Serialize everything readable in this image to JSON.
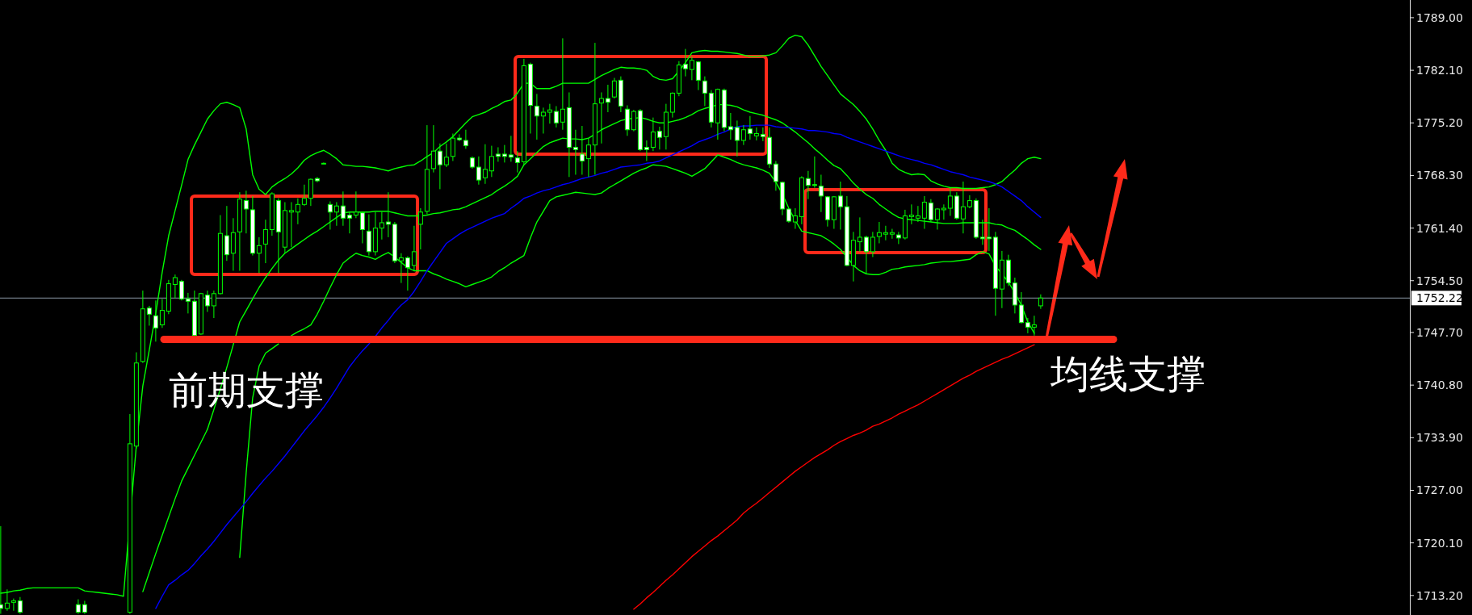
{
  "chart_data": {
    "type": "candlestick",
    "color": "#00ff00",
    "categories": [
      null,
      null,
      null,
      null,
      null,
      null,
      null,
      null,
      null,
      null,
      null,
      null,
      null,
      null,
      null,
      null,
      null,
      null,
      null,
      null,
      null,
      null,
      null,
      null,
      null,
      null,
      null,
      null,
      null,
      null,
      null,
      null,
      null,
      null,
      null,
      null,
      null,
      null,
      null,
      null,
      null,
      null,
      null,
      null,
      null,
      null,
      null,
      null,
      null,
      null,
      null,
      null,
      null,
      null,
      null,
      null,
      null,
      null,
      null,
      null,
      null,
      null,
      null,
      null,
      null,
      null,
      null,
      null,
      null,
      null,
      null,
      null,
      null,
      null,
      null,
      null,
      null,
      null,
      null,
      null,
      null,
      null,
      null,
      null,
      null,
      null,
      null,
      null,
      null,
      null,
      null,
      null,
      null,
      null,
      null,
      null,
      null,
      null,
      null,
      null,
      null,
      null,
      null,
      null,
      null,
      null,
      null,
      null,
      null,
      null,
      null,
      null,
      null,
      null,
      null,
      null,
      null,
      null,
      null,
      null,
      null,
      null,
      null,
      null,
      null,
      null,
      null,
      null,
      null,
      null,
      null,
      null,
      null,
      null,
      null,
      null,
      null,
      null,
      null,
      null,
      null,
      null,
      null,
      null,
      null,
      null,
      null,
      null,
      null,
      null,
      null,
      null,
      null,
      null,
      null,
      null,
      null,
      null,
      null,
      null,
      null,
      null
    ],
    "ohlc": [
      [
        1712.0,
        1722.3,
        1710.8,
        1711.5
      ],
      [
        1711.5,
        1714.0,
        1711.2,
        1712.2
      ],
      [
        1712.3,
        1712.8,
        1711.2,
        1712.5
      ],
      [
        1712.5,
        1713.0,
        1710.8,
        1711.0
      ],
      null,
      null,
      null,
      null,
      null,
      null,
      null,
      null,
      [
        1712.0,
        1712.7,
        1710.8,
        1711.0
      ],
      [
        1712.0,
        1712.5,
        1710.8,
        1711.0
      ],
      null,
      null,
      null,
      null,
      null,
      null,
      [
        1711.0,
        1737.0,
        1710.8,
        1733.1
      ],
      [
        1732.8,
        1745.1,
        1732.5,
        1743.7
      ],
      [
        1743.9,
        1753.2,
        1743.7,
        1750.8
      ],
      [
        1750.9,
        1751.2,
        1748.6,
        1750.1
      ],
      [
        1749.9,
        1751.9,
        1746.5,
        1748.3
      ],
      [
        1748.7,
        1752.1,
        1748.3,
        1750.6
      ],
      [
        1750.5,
        1754.6,
        1750.1,
        1754.1
      ],
      [
        1754.0,
        1755.3,
        1752.2,
        1754.9
      ],
      [
        1754.4,
        1754.6,
        1751.9,
        1752.1
      ],
      [
        1752.1,
        1752.9,
        1750.2,
        1751.8
      ],
      [
        1751.8,
        1753.2,
        1747.1,
        1747.3
      ],
      [
        1747.5,
        1752.9,
        1747.4,
        1752.8
      ],
      [
        1752.6,
        1753.2,
        1750.4,
        1751.2
      ],
      [
        1751.2,
        1753.2,
        1749.6,
        1752.8
      ],
      [
        1752.8,
        1763.1,
        1752.7,
        1760.7
      ],
      [
        1760.4,
        1764.3,
        1757.1,
        1757.9
      ],
      [
        1758.1,
        1762.7,
        1755.8,
        1760.8
      ],
      [
        1760.9,
        1766.1,
        1755.8,
        1765.2
      ],
      [
        1765.0,
        1766.3,
        1760.7,
        1763.9
      ],
      [
        1763.8,
        1765.6,
        1757.8,
        1758.1
      ],
      [
        1758.1,
        1760.2,
        1755.5,
        1759.1
      ],
      [
        1759.3,
        1762.5,
        1756.8,
        1761.2
      ],
      [
        1761.2,
        1766.1,
        1760.4,
        1765.9
      ],
      [
        1765.0,
        1765.3,
        1755.5,
        1760.9
      ],
      [
        1758.9,
        1764.8,
        1758.1,
        1763.7
      ],
      [
        1763.5,
        1764.8,
        1758.9,
        1763.7
      ],
      [
        1763.5,
        1765.3,
        1761.9,
        1764.5
      ],
      [
        1764.5,
        1767.1,
        1764.3,
        1765.3
      ],
      [
        1765.3,
        1767.9,
        1764.3,
        1767.8
      ],
      [
        1767.9,
        1768.1,
        1767.4,
        1767.6
      ],
      [
        1769.9,
        1770.0,
        1769.8,
        1769.9
      ],
      [
        1764.5,
        1764.9,
        1761.2,
        1763.5
      ],
      [
        1763.5,
        1764.8,
        1761.7,
        1764.3
      ],
      [
        1764.3,
        1766.2,
        1761.7,
        1762.7
      ],
      [
        1763.1,
        1763.5,
        1760.7,
        1762.7
      ],
      [
        1763.1,
        1766.2,
        1762.7,
        1763.5
      ],
      [
        1763.4,
        1763.5,
        1759.4,
        1761.2
      ],
      [
        1761.0,
        1763.2,
        1757.8,
        1758.3
      ],
      [
        1758.3,
        1763.5,
        1757.8,
        1761.4
      ],
      [
        1761.4,
        1763.5,
        1759.9,
        1762.1
      ],
      [
        1762.2,
        1766.1,
        1760.2,
        1761.9
      ],
      [
        1761.9,
        1762.2,
        1756.8,
        1757.1
      ],
      [
        1757.1,
        1758.1,
        1754.2,
        1757.5
      ],
      [
        1757.5,
        1757.7,
        1753.2,
        1756.2
      ],
      [
        1756.5,
        1761.7,
        1755.8,
        1758.3
      ],
      [
        1761.9,
        1764.0,
        1758.6,
        1763.5
      ],
      [
        1763.6,
        1774.9,
        1763.2,
        1769.1
      ],
      [
        1769.2,
        1774.9,
        1768.7,
        1771.5
      ],
      [
        1771.5,
        1772.5,
        1766.5,
        1769.7
      ],
      [
        1769.7,
        1772.5,
        1769.4,
        1770.7
      ],
      [
        1770.8,
        1773.8,
        1770.2,
        1773.2
      ],
      [
        1773.2,
        1773.7,
        1772.8,
        1773.0
      ],
      [
        1772.9,
        1774.3,
        1771.8,
        1772.2
      ],
      [
        1770.6,
        1770.8,
        1769.2,
        1769.4
      ],
      [
        1769.4,
        1770.8,
        1767.1,
        1767.7
      ],
      [
        1768.0,
        1772.4,
        1767.2,
        1769.1
      ],
      [
        1768.9,
        1772.2,
        1768.1,
        1770.8
      ],
      [
        1771.1,
        1772.0,
        1770.1,
        1770.8
      ],
      [
        1771.1,
        1772.3,
        1770.0,
        1770.8
      ],
      [
        1771.0,
        1773.5,
        1770.1,
        1770.7
      ],
      [
        1770.6,
        1771.5,
        1768.7,
        1770.0
      ],
      [
        1770.1,
        1783.6,
        1769.7,
        1782.7
      ],
      [
        1782.9,
        1783.1,
        1773.8,
        1777.5
      ],
      [
        1777.4,
        1779.0,
        1773.0,
        1776.1
      ],
      [
        1776.1,
        1777.2,
        1773.8,
        1776.6
      ],
      [
        1776.6,
        1777.7,
        1775.1,
        1776.9
      ],
      [
        1776.7,
        1777.4,
        1774.6,
        1775.2
      ],
      [
        1775.3,
        1786.3,
        1774.3,
        1777.0
      ],
      [
        1777.2,
        1779.2,
        1768.1,
        1772.0
      ],
      [
        1772.0,
        1774.3,
        1768.4,
        1771.7
      ],
      [
        1771.1,
        1774.8,
        1768.4,
        1770.2
      ],
      [
        1770.5,
        1773.2,
        1768.1,
        1772.3
      ],
      [
        1772.3,
        1785.7,
        1768.4,
        1777.7
      ],
      [
        1777.8,
        1779.2,
        1772.5,
        1778.4
      ],
      [
        1778.4,
        1780.2,
        1776.6,
        1777.9
      ],
      [
        1778.6,
        1781.1,
        1778.4,
        1780.7
      ],
      [
        1780.8,
        1781.3,
        1776.6,
        1777.4
      ],
      [
        1777.0,
        1777.5,
        1773.5,
        1774.3
      ],
      [
        1774.3,
        1776.9,
        1774.1,
        1776.7
      ],
      [
        1776.8,
        1777.0,
        1771.5,
        1771.7
      ],
      [
        1772.0,
        1772.9,
        1770.2,
        1771.7
      ],
      [
        1772.0,
        1775.9,
        1771.5,
        1774.0
      ],
      [
        1774.1,
        1774.7,
        1771.7,
        1773.3
      ],
      [
        1773.4,
        1777.7,
        1771.7,
        1776.6
      ],
      [
        1776.6,
        1779.2,
        1775.9,
        1779.1
      ],
      [
        1779.1,
        1783.3,
        1778.7,
        1782.8
      ],
      [
        1782.9,
        1784.9,
        1781.3,
        1782.3
      ],
      [
        1782.2,
        1783.9,
        1780.8,
        1783.4
      ],
      [
        1783.2,
        1783.3,
        1779.5,
        1780.8
      ],
      [
        1780.7,
        1781.3,
        1777.4,
        1779.1
      ],
      [
        1779.1,
        1779.5,
        1774.6,
        1775.3
      ],
      [
        1775.2,
        1779.7,
        1773.0,
        1779.6
      ],
      [
        1779.5,
        1779.7,
        1774.1,
        1774.6
      ],
      [
        1774.7,
        1776.5,
        1773.0,
        1774.3
      ],
      [
        1774.6,
        1775.5,
        1770.8,
        1772.9
      ],
      [
        1772.9,
        1774.9,
        1772.3,
        1774.3
      ],
      [
        1774.4,
        1776.1,
        1773.0,
        1773.8
      ],
      [
        1773.5,
        1774.6,
        1772.9,
        1773.8
      ],
      [
        1773.7,
        1774.6,
        1772.8,
        1773.4
      ],
      [
        1773.3,
        1774.6,
        1769.3,
        1769.8
      ],
      [
        1769.8,
        1770.2,
        1766.3,
        1767.5
      ],
      [
        1767.4,
        1767.5,
        1763.1,
        1763.9
      ],
      [
        1763.9,
        1764.0,
        1762.1,
        1762.3
      ],
      [
        1762.2,
        1764.0,
        1761.3,
        1763.0
      ],
      [
        1762.9,
        1768.2,
        1761.9,
        1768.0
      ],
      [
        1767.9,
        1768.9,
        1765.2,
        1767.0
      ],
      [
        1767.1,
        1770.8,
        1766.7,
        1767.0
      ],
      [
        1766.9,
        1768.4,
        1763.5,
        1765.6
      ],
      [
        1765.5,
        1765.6,
        1761.6,
        1762.5
      ],
      [
        1762.5,
        1765.6,
        1761.3,
        1765.5
      ],
      [
        1765.6,
        1767.5,
        1761.2,
        1764.2
      ],
      [
        1764.2,
        1765.6,
        1756.4,
        1756.5
      ],
      [
        1756.5,
        1760.9,
        1754.4,
        1759.8
      ],
      [
        1759.6,
        1762.8,
        1758.3,
        1760.2
      ],
      [
        1760.2,
        1760.4,
        1755.4,
        1758.3
      ],
      [
        1758.3,
        1760.9,
        1757.6,
        1760.2
      ],
      [
        1760.3,
        1762.2,
        1759.4,
        1760.8
      ],
      [
        1760.6,
        1761.7,
        1759.8,
        1760.8
      ],
      [
        1760.6,
        1761.3,
        1760.0,
        1760.8
      ],
      [
        1760.5,
        1760.9,
        1759.3,
        1760.1
      ],
      [
        1760.1,
        1763.8,
        1759.9,
        1763.0
      ],
      [
        1762.9,
        1764.5,
        1761.9,
        1763.1
      ],
      [
        1762.7,
        1764.3,
        1762.2,
        1763.0
      ],
      [
        1762.7,
        1765.6,
        1761.3,
        1764.8
      ],
      [
        1764.7,
        1765.2,
        1762.2,
        1762.5
      ],
      [
        1762.5,
        1764.0,
        1761.2,
        1763.9
      ],
      [
        1763.8,
        1764.5,
        1762.5,
        1764.0
      ],
      [
        1764.0,
        1766.7,
        1763.0,
        1765.6
      ],
      [
        1765.6,
        1766.1,
        1762.5,
        1762.7
      ],
      [
        1762.6,
        1767.5,
        1760.7,
        1764.2
      ],
      [
        1764.2,
        1765.7,
        1764.0,
        1765.0
      ],
      [
        1765.0,
        1765.3,
        1760.0,
        1760.2
      ],
      [
        1760.2,
        1762.5,
        1759.2,
        1760.0
      ],
      [
        1760.2,
        1764.0,
        1758.4,
        1760.0
      ],
      [
        1760.2,
        1760.9,
        1749.9,
        1753.5
      ],
      [
        1753.4,
        1758.4,
        1750.9,
        1757.2
      ],
      [
        1757.2,
        1757.9,
        1753.8,
        1754.2
      ],
      [
        1754.2,
        1754.9,
        1750.2,
        1751.3
      ],
      [
        1751.3,
        1753.0,
        1748.9,
        1749.0
      ],
      [
        1749.0,
        1749.6,
        1747.6,
        1748.4
      ],
      [
        1748.4,
        1749.9,
        1747.3,
        1748.7
      ],
      [
        1751.2,
        1752.7,
        1750.8,
        1752.22
      ]
    ],
    "ylim": [
      1710.64,
      1791.32
    ],
    "yticks": [
      {
        "value": 1713.2,
        "label": "1713.20"
      },
      {
        "value": 1720.1,
        "label": "1720.10"
      },
      {
        "value": 1727,
        "label": "1727.00"
      },
      {
        "value": 1733.9,
        "label": "1733.90"
      },
      {
        "value": 1740.8,
        "label": "1740.80"
      },
      {
        "value": 1747.7,
        "label": "1747.70"
      },
      {
        "value": 1754.5,
        "label": "1754.50"
      },
      {
        "value": 1761.4,
        "label": "1761.40"
      },
      {
        "value": 1768.3,
        "label": "1768.30"
      },
      {
        "value": 1775.2,
        "label": "1775.20"
      },
      {
        "value": 1782.1,
        "label": "1782.10"
      },
      {
        "value": 1789,
        "label": "1789.00"
      }
    ],
    "tick_labels": "y",
    "series": [
      {
        "type": "line",
        "color": "#00ff00",
        "values": [
          1713.5,
          1713.6,
          1713.8,
          1713.9,
          1714.1,
          1714.2,
          1714.2,
          1714.2,
          1714.2,
          1714.2,
          1714.2,
          1714.2,
          1714.2,
          1713.8,
          1713.7,
          1713.6,
          1713.5,
          1713.4,
          1713.3,
          1713.1,
          1723.1,
          1732.9,
          1740.7,
          1745.4,
          1750.2,
          1755.6,
          1760.4,
          1763.7,
          1767.0,
          1770.4,
          1772.3,
          1774.0,
          1775.7,
          1776.8,
          1777.7,
          1777.9,
          1777.6,
          1777.2,
          1774.4,
          1768.4,
          1766.5,
          1765.8,
          1766.8,
          1767.4,
          1767.9,
          1768.5,
          1769.3,
          1770.3,
          1770.9,
          1771.3,
          1771.6,
          1771.1,
          1770.5,
          1769.7,
          1769.6,
          1769.5,
          1769.5,
          1769.4,
          1769.3,
          1769.1,
          1768.9,
          1769.2,
          1769.4,
          1769.6,
          1769.7,
          1770.2,
          1770.8,
          1771.3,
          1772.1,
          1772.7,
          1773.4,
          1774.3,
          1775.2,
          1776.0,
          1776.3,
          1776.6,
          1777.1,
          1777.5,
          1778.0,
          1778.2,
          1779.1,
          1780.4,
          1780.4,
          1779.7,
          1779.7,
          1779.7,
          1780.0,
          1780.4,
          1780.4,
          1780.4,
          1780.4,
          1780.4,
          1780.9,
          1781.4,
          1781.8,
          1782.2,
          1782.5,
          1782.4,
          1782.4,
          1782.3,
          1782.1,
          1781.3,
          1780.9,
          1780.8,
          1781.0,
          1782.0,
          1783.1,
          1784.4,
          1784.6,
          1784.7,
          1784.6,
          1784.6,
          1784.5,
          1784.4,
          1784.3,
          1784.1,
          1783.9,
          1783.9,
          1784.0,
          1784.1,
          1784.4,
          1785.3,
          1786.3,
          1786.7,
          1786.5,
          1785.4,
          1784.0,
          1782.6,
          1781.4,
          1780.2,
          1779.0,
          1778.3,
          1777.6,
          1776.7,
          1775.7,
          1774.4,
          1772.9,
          1771.6,
          1769.9,
          1769.1,
          1768.7,
          1768.4,
          1768.5,
          1768.4,
          1767.6,
          1767.2,
          1766.9,
          1766.7,
          1766.7,
          1766.6,
          1766.6,
          1766.6,
          1766.7,
          1766.8,
          1767.1,
          1767.5,
          1768.3,
          1769.0,
          1769.9,
          1770.5,
          1770.7,
          1770.5
        ]
      },
      {
        "type": "line",
        "color": "#00ff00",
        "values": [
          null,
          null,
          null,
          null,
          null,
          null,
          null,
          null,
          null,
          null,
          null,
          null,
          null,
          null,
          null,
          null,
          null,
          null,
          null,
          null,
          null,
          null,
          1713.7,
          1716.2,
          1718.7,
          1721.1,
          1723.5,
          1725.9,
          1728.2,
          1729.9,
          1731.6,
          1733.3,
          1735.0,
          1737.6,
          1740.3,
          1743.1,
          1746.1,
          1749.1,
          1750.6,
          1752.1,
          1753.6,
          1754.9,
          1756.1,
          1757.2,
          1758.1,
          1758.7,
          1759.3,
          1759.9,
          1760.5,
          1761.0,
          1761.6,
          1762.2,
          1762.8,
          1763.4,
          1763.5,
          1763.5,
          1763.5,
          1763.5,
          1763.6,
          1763.6,
          1763.6,
          1763.4,
          1763.2,
          1763.0,
          1763.0,
          1763.0,
          1763.1,
          1763.3,
          1763.4,
          1763.6,
          1763.8,
          1763.9,
          1764.2,
          1764.6,
          1765.0,
          1765.4,
          1765.8,
          1766.4,
          1766.9,
          1767.5,
          1768.2,
          1769.7,
          1770.5,
          1771.3,
          1772.1,
          1772.6,
          1772.9,
          1773.2,
          1773.1,
          1773.1,
          1773.0,
          1773.2,
          1773.7,
          1774.3,
          1774.7,
          1775.1,
          1775.5,
          1775.7,
          1775.8,
          1775.9,
          1775.7,
          1775.4,
          1775.2,
          1775.2,
          1775.4,
          1775.6,
          1775.9,
          1776.3,
          1776.8,
          1777.1,
          1777.3,
          1777.6,
          1777.6,
          1777.5,
          1777.3,
          1776.9,
          1776.6,
          1776.4,
          1776.2,
          1775.9,
          1775.6,
          1775.2,
          1774.6,
          1774.0,
          1773.3,
          1772.6,
          1771.8,
          1771.1,
          1770.3,
          1769.6,
          1769.2,
          1768.3,
          1767.3,
          1766.5,
          1765.8,
          1765.3,
          1764.5,
          1763.9,
          1763.3,
          1762.8,
          1762.6,
          1762.5,
          1762.4,
          1762.3,
          1762.2,
          1762.1,
          1762.0,
          1762.0,
          1762.0,
          1762.1,
          1762.1,
          1762.1,
          1762.1,
          1762.1,
          1761.9,
          1761.8,
          1761.4,
          1761.1,
          1760.5,
          1759.9,
          1759.2,
          1758.6
        ]
      },
      {
        "type": "line",
        "color": "#00ff00",
        "values": [
          null,
          null,
          null,
          null,
          null,
          null,
          null,
          null,
          null,
          null,
          null,
          null,
          null,
          null,
          null,
          null,
          null,
          null,
          null,
          null,
          null,
          null,
          null,
          null,
          null,
          null,
          null,
          null,
          null,
          null,
          null,
          null,
          null,
          null,
          null,
          null,
          null,
          1718.2,
          1729.3,
          1739.1,
          1743.3,
          1745.0,
          1745.6,
          1746.2,
          null,
          1747.3,
          1747.8,
          1748.2,
          1748.7,
          1750.1,
          1751.8,
          1753.6,
          1755.3,
          1756.8,
          1757.5,
          1758.1,
          1757.8,
          1757.6,
          1757.3,
          1757.8,
          1758.2,
          1757.6,
          1756.9,
          1756.2,
          1755.8,
          1755.8,
          1755.8,
          1755.4,
          1755.1,
          1754.7,
          1754.4,
          1754.1,
          1753.7,
          1754.0,
          1754.3,
          1754.6,
          1755.0,
          1755.7,
          1756.2,
          1756.8,
          1757.3,
          1757.8,
          1760.1,
          1762.2,
          1763.6,
          1765.0,
          1765.5,
          1765.7,
          1765.9,
          1766.1,
          1766.0,
          1765.9,
          1765.8,
          1766.0,
          1766.6,
          1767.1,
          1767.6,
          1768.1,
          1768.6,
          1769.0,
          1769.3,
          1769.7,
          1769.6,
          1769.5,
          1769.2,
          1768.9,
          1768.6,
          1768.2,
          1768.7,
          1769.2,
          1770.1,
          1771.0,
          1770.7,
          1770.4,
          1770.0,
          1769.7,
          1769.5,
          1769.3,
          1769.0,
          1768.6,
          1767.4,
          1765.9,
          1764.0,
          1762.4,
          1761.0,
          1760.8,
          1760.6,
          1760.4,
          1759.9,
          1759.3,
          1758.6,
          1757.6,
          1756.5,
          1755.8,
          1755.4,
          1755.3,
          1755.3,
          1755.6,
          1756.0,
          1756.1,
          1756.3,
          1756.4,
          1756.5,
          1756.6,
          1756.8,
          1756.9,
          1757.0,
          1757.0,
          1757.1,
          1757.2,
          1757.3,
          1757.9,
          1758.3,
          1758.0,
          1756.4,
          1755.4,
          1754.3,
          1752.9,
          1751.3,
          1749.1,
          1747.6,
          null
        ]
      },
      {
        "type": "line",
        "color": "#0000ff",
        "values": [
          null,
          null,
          null,
          null,
          null,
          null,
          null,
          null,
          null,
          null,
          null,
          null,
          null,
          null,
          null,
          null,
          null,
          null,
          null,
          null,
          null,
          null,
          null,
          null,
          1711.5,
          1713.1,
          1714.6,
          1715.2,
          1715.9,
          1716.5,
          1717.4,
          1718.4,
          1719.3,
          1720.3,
          1721.4,
          1722.5,
          1723.5,
          1724.5,
          1725.5,
          1726.6,
          1727.6,
          1728.6,
          1729.5,
          1730.5,
          1731.5,
          1732.6,
          1733.7,
          1734.8,
          1735.8,
          1736.8,
          1737.9,
          1739.1,
          1740.4,
          1741.8,
          1743.2,
          1744.3,
          1745.3,
          1746.2,
          1747.2,
          1748.3,
          1749.3,
          1750.4,
          1751.3,
          1752.0,
          1753.1,
          1754.4,
          1755.8,
          1757.0,
          1758.2,
          1759.4,
          1760.0,
          1760.6,
          1761.1,
          1761.5,
          1761.9,
          1762.3,
          1762.7,
          1763.0,
          1763.3,
          1764.0,
          1764.6,
          1765.3,
          1765.6,
          1766.0,
          1766.3,
          1766.5,
          1766.8,
          1767.1,
          1767.3,
          1767.6,
          1767.9,
          1768.1,
          1768.3,
          1768.6,
          1768.8,
          1769.1,
          1769.4,
          1769.5,
          1769.6,
          1769.7,
          1769.9,
          1770.0,
          1770.2,
          1770.6,
          1771.0,
          1771.4,
          1771.8,
          1772.2,
          1772.7,
          1773.0,
          1773.3,
          1773.7,
          1774.0,
          1774.4,
          1774.7,
          1774.8,
          1774.8,
          1774.9,
          1774.9,
          1774.9,
          1774.7,
          1774.6,
          1774.6,
          1774.5,
          1774.4,
          1774.2,
          1774.2,
          1774.1,
          1774.0,
          1773.8,
          1773.7,
          1773.3,
          1773.0,
          1772.7,
          1772.4,
          1772.1,
          1771.8,
          1771.5,
          1771.2,
          1770.9,
          1770.6,
          1770.4,
          1770.2,
          1769.9,
          1769.7,
          1769.4,
          1769.1,
          1768.8,
          1768.6,
          1768.4,
          1768.1,
          1767.9,
          1767.7,
          1767.5,
          1767.2,
          1766.8,
          1766.2,
          1765.6,
          1765.0,
          1764.2,
          1763.5,
          1762.8
        ]
      },
      {
        "type": "line",
        "color": "#ff0000",
        "values": [
          null,
          null,
          null,
          null,
          null,
          null,
          null,
          null,
          null,
          null,
          null,
          null,
          null,
          null,
          null,
          null,
          null,
          null,
          null,
          null,
          null,
          null,
          null,
          null,
          null,
          null,
          null,
          null,
          null,
          null,
          null,
          null,
          null,
          null,
          null,
          null,
          null,
          null,
          null,
          null,
          null,
          null,
          null,
          null,
          null,
          null,
          null,
          null,
          null,
          null,
          null,
          null,
          null,
          null,
          null,
          null,
          null,
          null,
          null,
          null,
          null,
          null,
          null,
          null,
          null,
          null,
          null,
          null,
          null,
          null,
          null,
          null,
          null,
          null,
          null,
          null,
          null,
          null,
          null,
          null,
          null,
          null,
          null,
          null,
          null,
          null,
          null,
          null,
          null,
          null,
          null,
          null,
          null,
          null,
          null,
          null,
          null,
          null,
          1711.4,
          1712.1,
          1712.9,
          1713.6,
          1714.4,
          1715.2,
          1715.9,
          1716.7,
          1717.5,
          1718.3,
          1719.0,
          1719.7,
          1720.4,
          1721.0,
          1721.7,
          1722.4,
          1723.1,
          1724.0,
          1724.7,
          1725.3,
          1726.0,
          1726.7,
          1727.4,
          1728.1,
          1728.8,
          1729.5,
          1730.1,
          1730.7,
          1731.3,
          1731.8,
          1732.3,
          1732.9,
          1733.4,
          1733.8,
          1734.2,
          1734.5,
          1734.9,
          1735.4,
          1735.7,
          1736.1,
          1736.5,
          1737.0,
          1737.4,
          1737.8,
          1738.2,
          1738.7,
          1739.2,
          1739.7,
          1740.2,
          1740.7,
          1741.2,
          1741.7,
          1742.1,
          1742.6,
          1743.0,
          1743.4,
          1743.8,
          1744.2,
          1744.5,
          1744.9,
          1745.3,
          1745.7,
          1746.1,
          null
        ]
      }
    ],
    "ref_lines": [
      {
        "axis": "y",
        "value": 1752.22,
        "label": "1752.22",
        "color": "#8c9aa8"
      },
      {
        "axis": "y",
        "value": 1746.8,
        "color": "#ff2a1a"
      }
    ],
    "annotations": [
      "前期支撑",
      "均线支撑"
    ]
  }
}
